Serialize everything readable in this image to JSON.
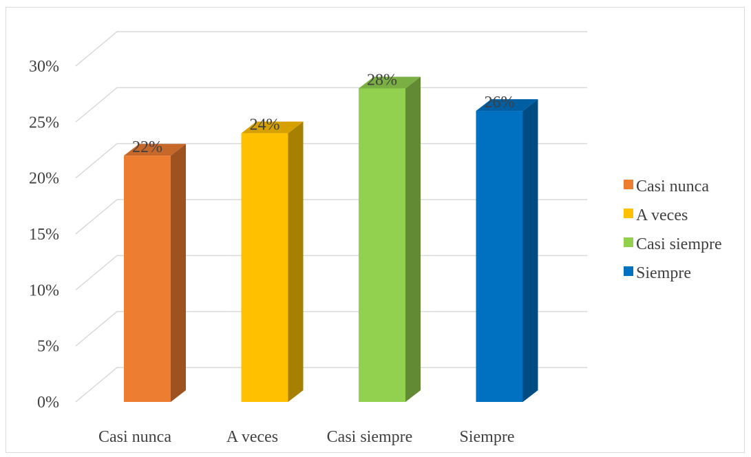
{
  "chart_data": {
    "type": "bar",
    "title": "",
    "xlabel": "",
    "ylabel": "",
    "categories": [
      "Casi nunca",
      "A veces",
      "Casi siempre",
      "Siempre"
    ],
    "values": [
      22,
      24,
      28,
      26
    ],
    "value_labels": [
      "22%",
      "24%",
      "28%",
      "26%"
    ],
    "ylim": [
      0,
      30
    ],
    "yticks": [
      0,
      5,
      10,
      15,
      20,
      25,
      30
    ],
    "ytick_labels": [
      "0%",
      "5%",
      "10%",
      "15%",
      "20%",
      "25%",
      "30%"
    ],
    "grid": true,
    "three_d": true,
    "legend": {
      "position": "right",
      "entries": [
        "Casi nunca",
        "A veces",
        "Casi siempre",
        "Siempre"
      ]
    },
    "colors": {
      "front": [
        "#ED7D31",
        "#FFC000",
        "#92D050",
        "#0070C0"
      ],
      "side": [
        "#9E5220",
        "#A88000",
        "#628A35",
        "#004B82"
      ],
      "top": [
        "#C6682A",
        "#D6A100",
        "#7AAF44",
        "#005FA3"
      ]
    }
  }
}
